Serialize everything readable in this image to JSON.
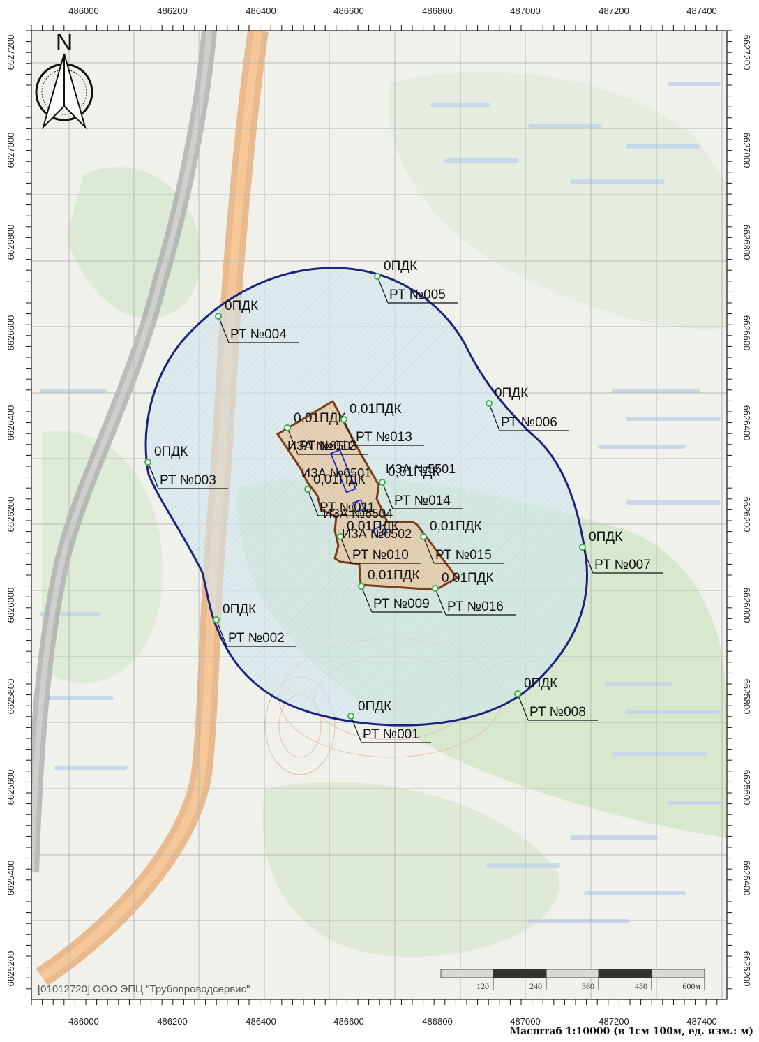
{
  "north_label": "N",
  "credit": "[01012720] ООО ЭПЦ \"Трубопроводсервис\"",
  "scale_caption": "Масштаб 1:10000 (в 1см 100м, ед. изм.: м)",
  "scale_bar": [
    "120",
    "240",
    "360",
    "480",
    "600м"
  ],
  "x_ticks": [
    "486000",
    "486200",
    "486400",
    "486600",
    "486800",
    "487000",
    "487200",
    "487400"
  ],
  "y_ticks": [
    "6627200",
    "6627000",
    "6626800",
    "6626600",
    "6626400",
    "6626200",
    "6626000",
    "6625800",
    "6625600",
    "6625400",
    "6625200"
  ],
  "colors": {
    "zone_outline": "#1a237e",
    "zone_fill": "#cfe6ee",
    "site_outline": "#7a3a12",
    "site_fill": "#e8c9a6",
    "source_outline": "#1a2bd6",
    "point_marker": "#3bb34a",
    "road": "#f0a868",
    "grid": "#b8b8b8"
  },
  "points": [
    {
      "label": "РТ №001",
      "value": "0ПДК"
    },
    {
      "label": "РТ №002",
      "value": "0ПДК"
    },
    {
      "label": "РТ №003",
      "value": "0ПДК"
    },
    {
      "label": "РТ №004",
      "value": "0ПДК"
    },
    {
      "label": "РТ №005",
      "value": "0ПДК"
    },
    {
      "label": "РТ №006",
      "value": "0ПДК"
    },
    {
      "label": "РТ №007",
      "value": "0ПДК"
    },
    {
      "label": "РТ №008",
      "value": "0ПДК"
    },
    {
      "label": "РТ №009",
      "value": "0,01ПДК"
    },
    {
      "label": "РТ №010",
      "value": "0,01ПДК"
    },
    {
      "label": "РТ №011",
      "value": "0,01ПДК"
    },
    {
      "label": "РТ №012",
      "value": "0,01ПДК"
    },
    {
      "label": "РТ №013",
      "value": "0,01ПДК"
    },
    {
      "label": "РТ №014",
      "value": "0,01ПДК"
    },
    {
      "label": "РТ №015",
      "value": "0,01ПДК"
    },
    {
      "label": "РТ №016",
      "value": "0,01ПДК"
    }
  ],
  "sources": [
    "ИЗА №6503",
    "ИЗА №6501",
    "ИЗА №5501",
    "ИЗА №6504",
    "ИЗА №6502"
  ]
}
